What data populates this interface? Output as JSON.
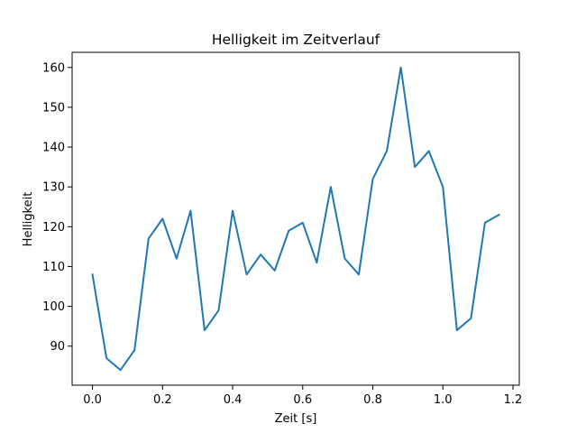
{
  "chart_data": {
    "type": "line",
    "title": "Helligkeit im Zeitverlauf",
    "xlabel": "Zeit [s]",
    "ylabel": "Helligkeit",
    "xlim": [
      -0.058,
      1.218
    ],
    "ylim": [
      80.2,
      163.8
    ],
    "x_ticks": [
      0.0,
      0.2,
      0.4,
      0.6,
      0.8,
      1.0,
      1.2
    ],
    "x_tick_labels": [
      "0.0",
      "0.2",
      "0.4",
      "0.6",
      "0.8",
      "1.0",
      "1.2"
    ],
    "y_ticks": [
      90,
      100,
      110,
      120,
      130,
      140,
      150,
      160
    ],
    "y_tick_labels": [
      "90",
      "100",
      "110",
      "120",
      "130",
      "140",
      "150",
      "160"
    ],
    "grid": false,
    "line_color": "#1f77b4",
    "series": [
      {
        "x": [
          0.0,
          0.04,
          0.08,
          0.12,
          0.16,
          0.2,
          0.24,
          0.28,
          0.32,
          0.36,
          0.4,
          0.44,
          0.48,
          0.52,
          0.56,
          0.6,
          0.64,
          0.68,
          0.72,
          0.76,
          0.8,
          0.84,
          0.88,
          0.92,
          0.96,
          1.0,
          1.04,
          1.08,
          1.12,
          1.16
        ],
        "values": [
          108,
          87,
          84,
          89,
          117,
          122,
          112,
          124,
          94,
          99,
          124,
          108,
          113,
          109,
          119,
          121,
          111,
          130,
          112,
          108,
          132,
          139,
          160,
          135,
          139,
          130,
          94,
          97,
          121,
          123
        ]
      }
    ]
  }
}
